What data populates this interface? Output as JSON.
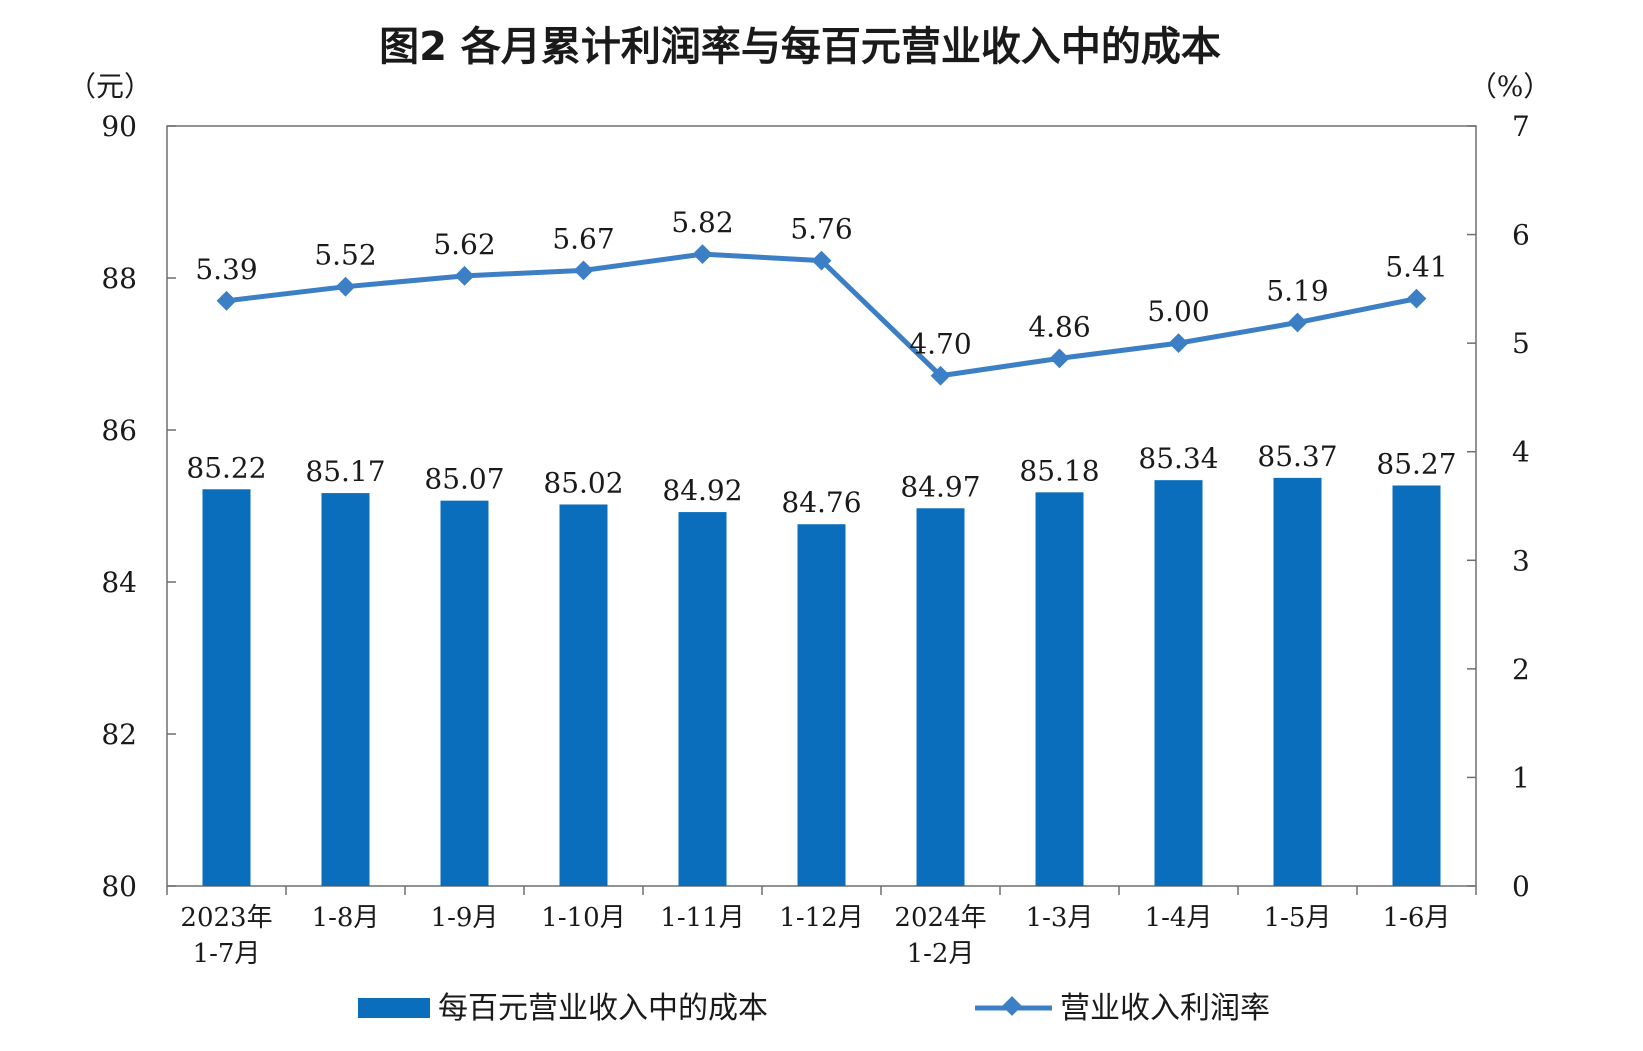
{
  "chart_data": {
    "type": "bar",
    "title": "图2  各月累计利润率与每百元营业收入中的成本",
    "left_unit": "（元）",
    "right_unit": "（%）",
    "categories": [
      [
        "2023年",
        "1-7月"
      ],
      [
        "1-8月"
      ],
      [
        "1-9月"
      ],
      [
        "1-10月"
      ],
      [
        "1-11月"
      ],
      [
        "1-12月"
      ],
      [
        "2024年",
        "1-2月"
      ],
      [
        "1-3月"
      ],
      [
        "1-4月"
      ],
      [
        "1-5月"
      ],
      [
        "1-6月"
      ]
    ],
    "y_left": {
      "min": 80,
      "max": 90,
      "ticks": [
        "80",
        "82",
        "84",
        "86",
        "88",
        "90"
      ]
    },
    "y_right": {
      "min": 0,
      "max": 7,
      "ticks": [
        "0",
        "1",
        "2",
        "3",
        "4",
        "5",
        "6",
        "7"
      ]
    },
    "series": [
      {
        "name": "每百元营业收入中的成本",
        "type": "bar",
        "axis": "left",
        "color": "#0a6ebd",
        "values": [
          85.22,
          85.17,
          85.07,
          85.02,
          84.92,
          84.76,
          84.97,
          85.18,
          85.34,
          85.37,
          85.27
        ],
        "labels": [
          "85.22",
          "85.17",
          "85.07",
          "85.02",
          "84.92",
          "84.76",
          "84.97",
          "85.18",
          "85.34",
          "85.37",
          "85.27"
        ]
      },
      {
        "name": "营业收入利润率",
        "type": "line",
        "axis": "right",
        "color": "#3c7fc4",
        "values": [
          5.39,
          5.52,
          5.62,
          5.67,
          5.82,
          5.76,
          4.7,
          4.86,
          5.0,
          5.19,
          5.41
        ],
        "labels": [
          "5.39",
          "5.52",
          "5.62",
          "5.67",
          "5.82",
          "5.76",
          "4.70",
          "4.86",
          "5.00",
          "5.19",
          "5.41"
        ]
      }
    ],
    "legend_position": "bottom"
  }
}
